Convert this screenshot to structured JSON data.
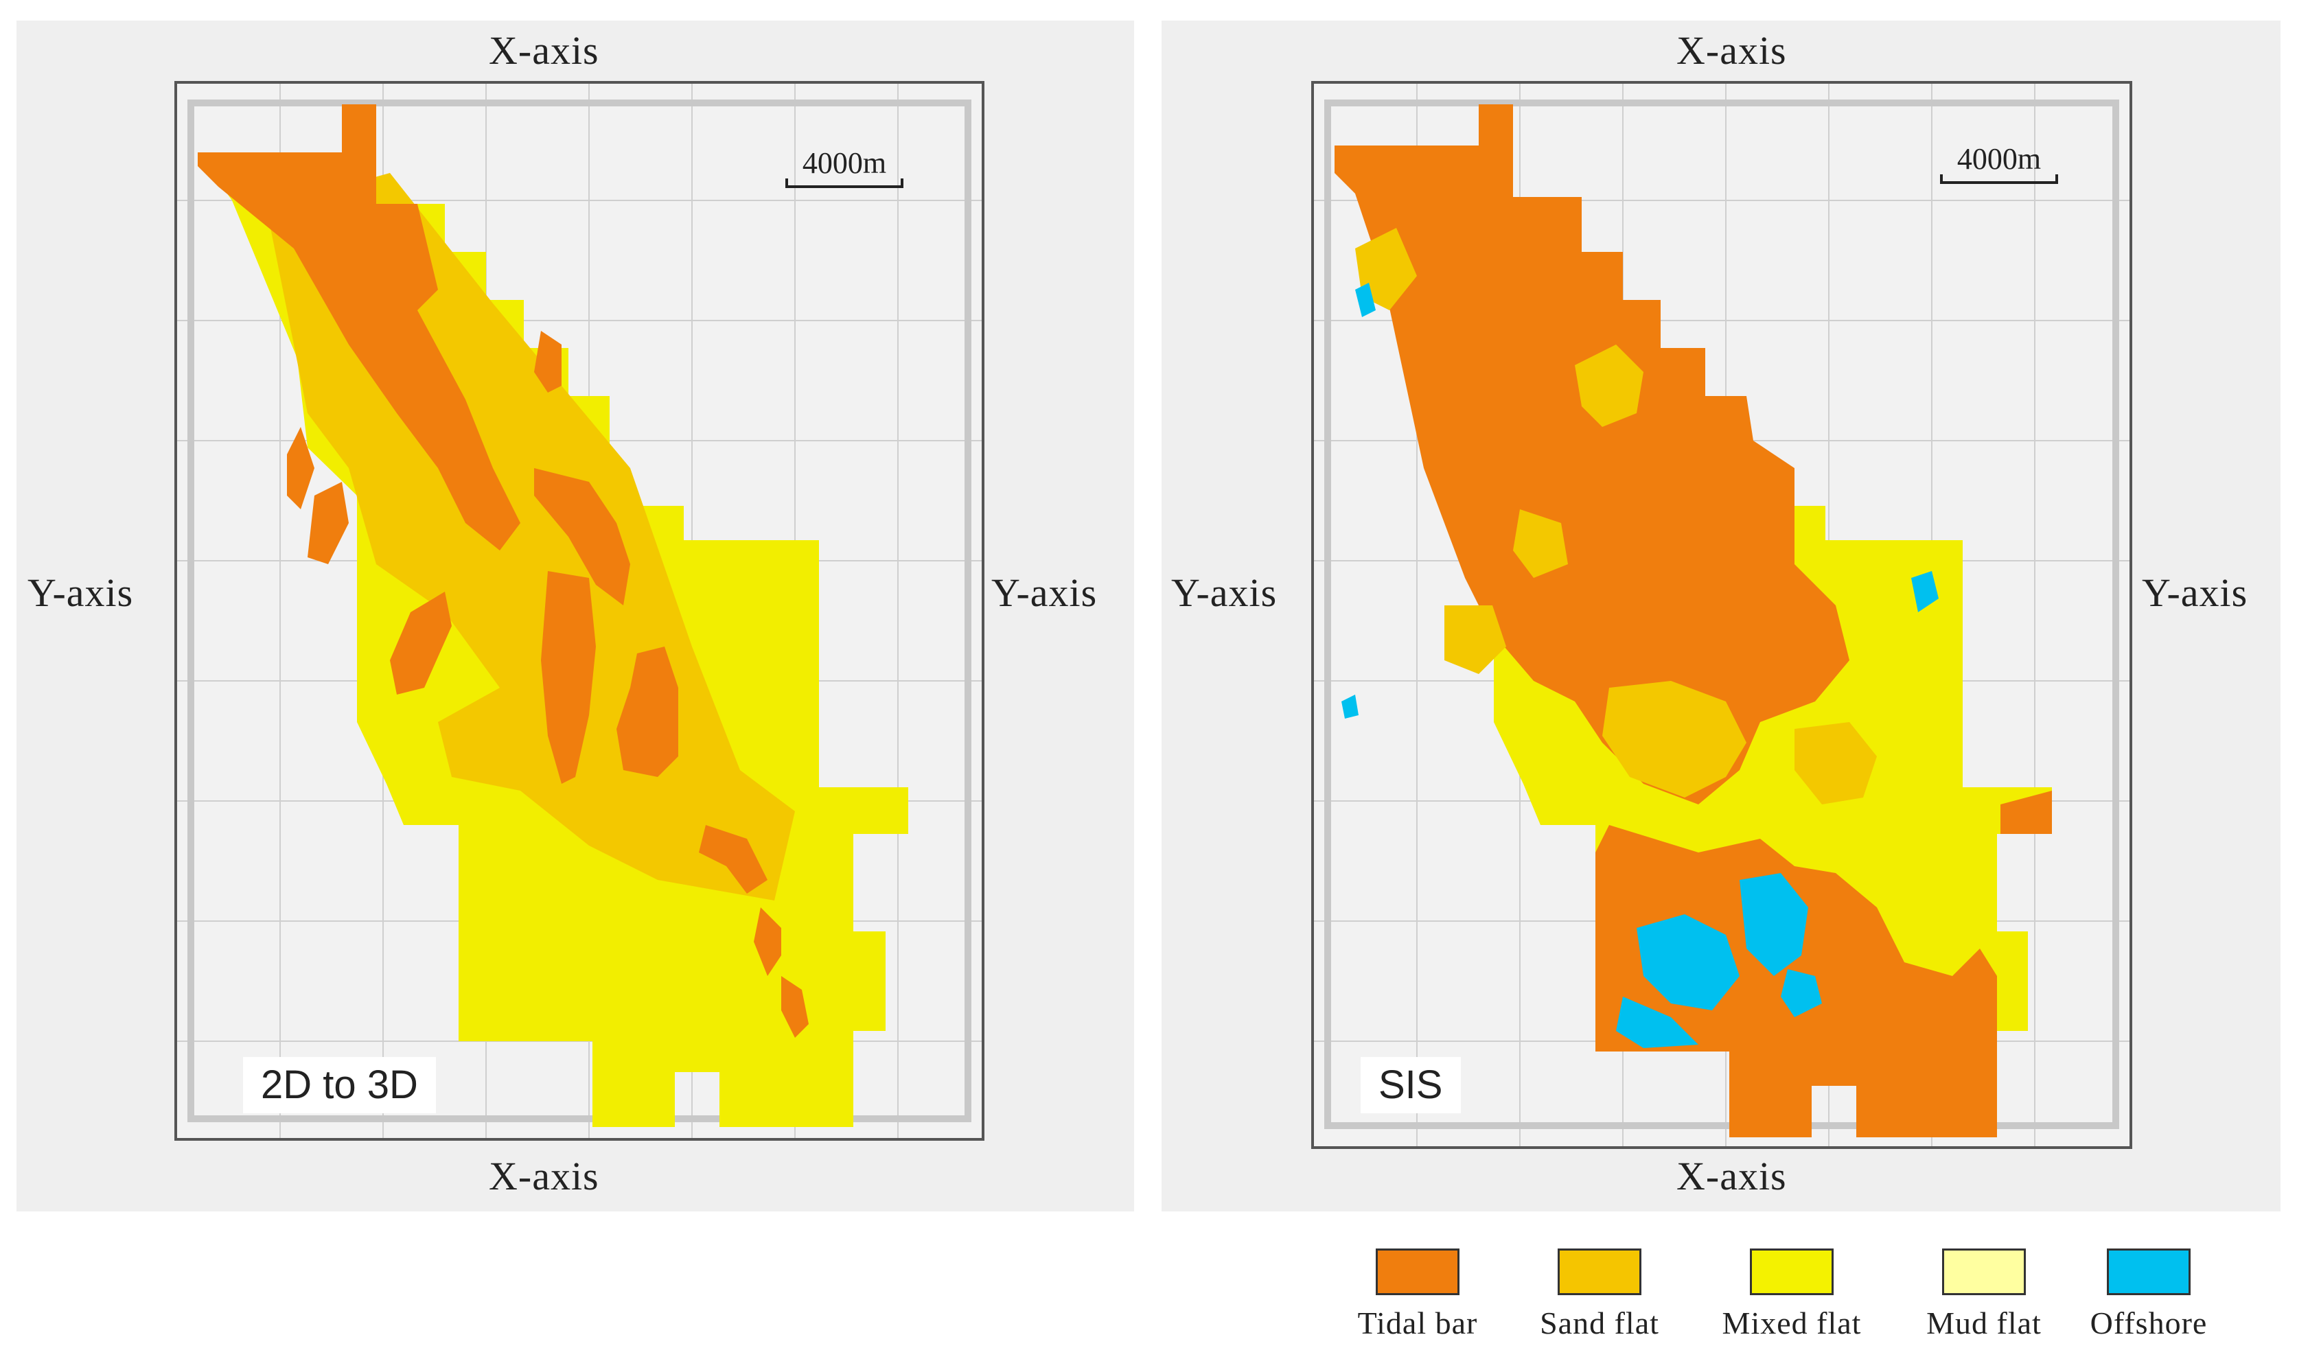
{
  "axes": {
    "x_label": "X-axis",
    "y_label": "Y-axis"
  },
  "scale_bar": {
    "label": "4000m"
  },
  "panels": [
    {
      "method_label": "2D to 3D"
    },
    {
      "method_label": "SIS"
    }
  ],
  "legend": {
    "items": [
      {
        "label": "Tidal bar",
        "color": "#f07e0e"
      },
      {
        "label": "Sand  flat",
        "color": "#f5c500"
      },
      {
        "label": "Mixed  flat",
        "color": "#f4f200"
      },
      {
        "label": "Mud  flat",
        "color": "#ffffa0"
      },
      {
        "label": "Offshore",
        "color": "#00c0ef"
      }
    ]
  }
}
